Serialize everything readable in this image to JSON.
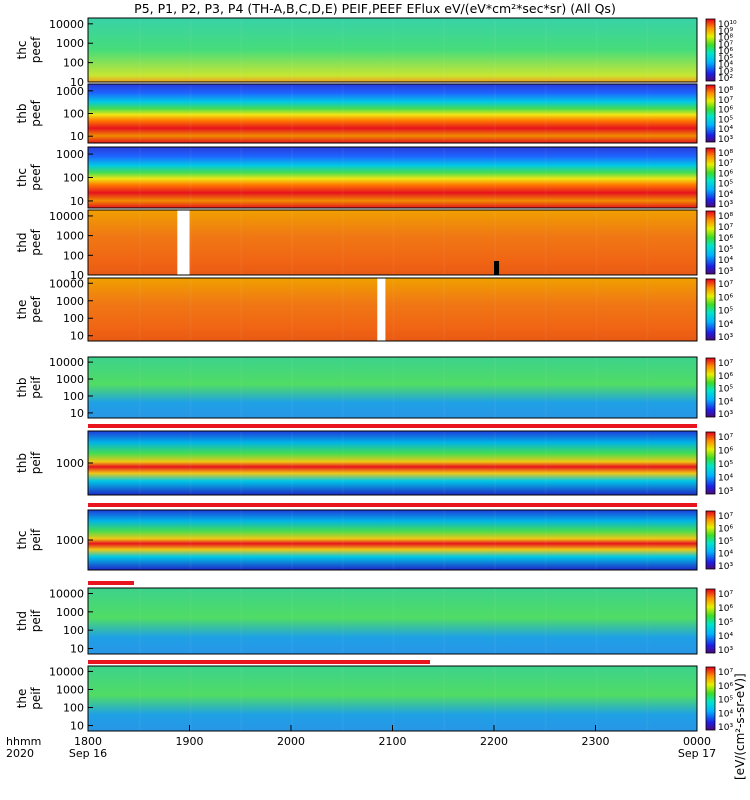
{
  "title": "P5, P1, P2, P3, P4 (TH-A,B,C,D,E) PEIF,PEEF EFlux eV/(eV*cm²*sec*sr) (All Qs)",
  "colorbar_label": "[eV/(cm²-s-sr-eV)]",
  "colors": {
    "bar_red": "#e8141e",
    "gap": "#ffffff",
    "bg": "#ffffff"
  },
  "chart_data": {
    "type": "heatmap",
    "xaxis": {
      "ticks": [
        "1800",
        "1900",
        "2000",
        "2100",
        "2200",
        "2300",
        "0000"
      ],
      "tick_values": [
        18,
        19,
        20,
        21,
        22,
        23,
        24
      ],
      "range": [
        18,
        24
      ],
      "sublabels": [
        {
          "text": "Sep 16",
          "value": 18
        },
        {
          "text": "Sep 17",
          "value": 24
        }
      ],
      "row_labels": [
        "hhmm",
        "2020"
      ]
    },
    "panels": [
      {
        "probe": "thc",
        "product": "peef",
        "yticks": [
          "10000",
          "1000",
          "100",
          "10"
        ],
        "cb_ticks": [
          "10¹⁰",
          "10⁹",
          "10⁸",
          "10⁷",
          "10⁶",
          "10⁵",
          "10⁴",
          "10³",
          "10²"
        ],
        "yrange": [
          10,
          20000
        ],
        "scale": "log"
      },
      {
        "probe": "thb",
        "product": "peef",
        "yticks": [
          "1000",
          "100",
          "10"
        ],
        "cb_ticks": [
          "10⁸",
          "10⁷",
          "10⁶",
          "10⁵",
          "10⁴",
          "10³"
        ],
        "yrange": [
          5,
          2000
        ],
        "scale": "log"
      },
      {
        "probe": "thc",
        "product": "peef",
        "yticks": [
          "1000",
          "100",
          "10"
        ],
        "cb_ticks": [
          "10⁸",
          "10⁷",
          "10⁶",
          "10⁵",
          "10⁴",
          "10³"
        ],
        "yrange": [
          5,
          2000
        ],
        "scale": "log"
      },
      {
        "probe": "thd",
        "product": "peef",
        "yticks": [
          "10000",
          "1000",
          "100",
          "10"
        ],
        "cb_ticks": [
          "10⁸",
          "10⁷",
          "10⁶",
          "10⁵",
          "10⁴",
          "10³"
        ],
        "yrange": [
          10,
          20000
        ],
        "scale": "log",
        "gaps": [
          [
            18.88,
            19.0
          ]
        ],
        "dark_patch": [
          22.0,
          22.05
        ]
      },
      {
        "probe": "the",
        "product": "peef",
        "yticks": [
          "10000",
          "1000",
          "100",
          "10"
        ],
        "cb_ticks": [
          "10⁷",
          "10⁶",
          "10⁵",
          "10⁴",
          "10³"
        ],
        "yrange": [
          5,
          20000
        ],
        "scale": "log",
        "gaps": [
          [
            20.85,
            20.93
          ]
        ]
      },
      {
        "probe": "thb",
        "product": "peif",
        "yticks": [
          "10000",
          "1000",
          "100",
          "10"
        ],
        "cb_ticks": [
          "10⁷",
          "10⁶",
          "10⁵",
          "10⁴",
          "10³"
        ],
        "yrange": [
          5,
          20000
        ],
        "scale": "log"
      },
      {
        "probe": "thb",
        "product": "peif",
        "yticks": [
          "1000"
        ],
        "cb_ticks": [
          "10⁷",
          "10⁶",
          "10⁵",
          "10⁴",
          "10³"
        ],
        "yrange": [
          100,
          10000
        ],
        "scale": "log"
      },
      {
        "probe": "thc",
        "product": "peif",
        "yticks": [
          "1000"
        ],
        "cb_ticks": [
          "10⁷",
          "10⁶",
          "10⁵",
          "10⁴",
          "10³"
        ],
        "yrange": [
          100,
          10000
        ],
        "scale": "log"
      },
      {
        "probe": "thd",
        "product": "peif",
        "yticks": [
          "10000",
          "1000",
          "100",
          "10"
        ],
        "cb_ticks": [
          "10⁷",
          "10⁶",
          "10⁵",
          "10⁴",
          "10³"
        ],
        "yrange": [
          5,
          20000
        ],
        "scale": "log"
      },
      {
        "probe": "the",
        "product": "peif",
        "yticks": [
          "10000",
          "1000",
          "100",
          "10"
        ],
        "cb_ticks": [
          "10⁷",
          "10⁶",
          "10⁵",
          "10⁴",
          "10³"
        ],
        "yrange": [
          5,
          20000
        ],
        "scale": "log"
      }
    ],
    "grid": false,
    "legend": "right-colorbars"
  }
}
